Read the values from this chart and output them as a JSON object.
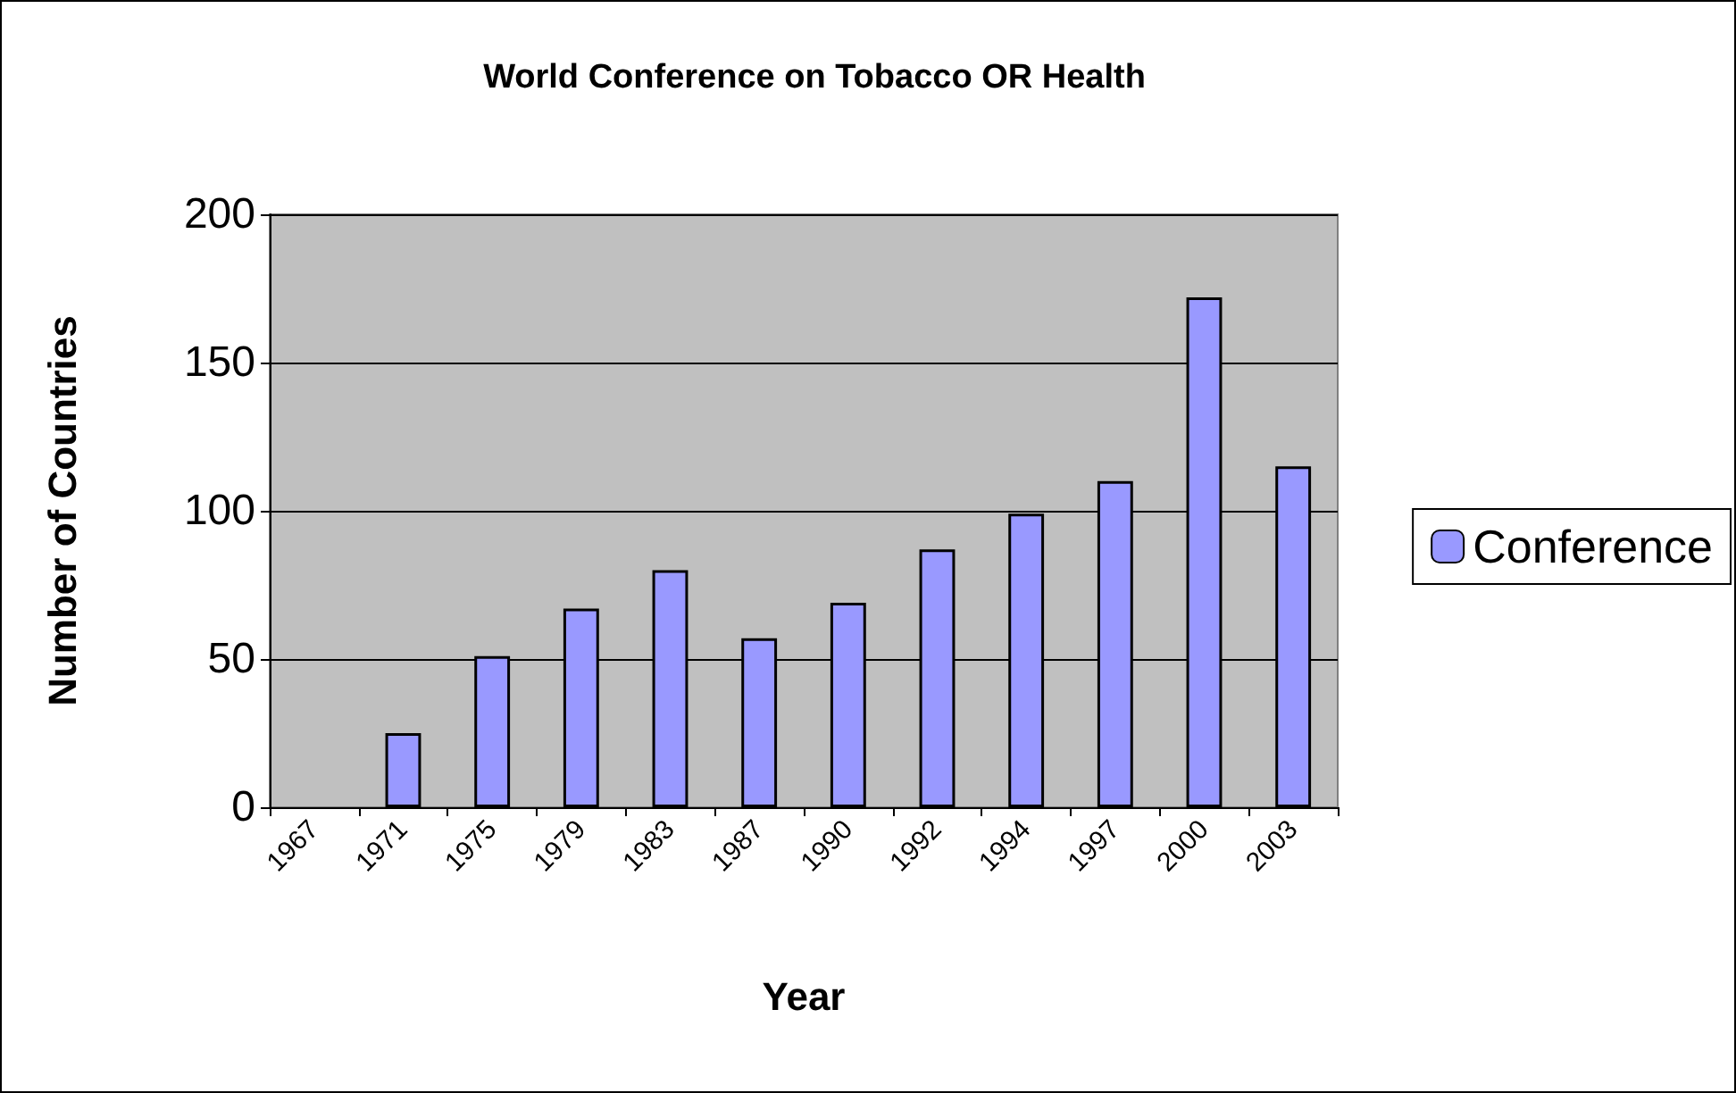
{
  "chart_data": {
    "type": "bar",
    "title": "World Conference on Tobacco OR Health",
    "xlabel": "Year",
    "ylabel": "Number of Countries",
    "categories": [
      "1967",
      "1971",
      "1975",
      "1979",
      "1983",
      "1987",
      "1990",
      "1992",
      "1994",
      "1997",
      "2000",
      "2003"
    ],
    "series": [
      {
        "name": "Conference",
        "color": "#9999ff",
        "values": [
          null,
          25,
          51,
          67,
          80,
          57,
          69,
          87,
          99,
          110,
          172,
          115
        ]
      }
    ],
    "ylim": [
      0,
      200
    ],
    "yticks": [
      0,
      50,
      100,
      150,
      200
    ],
    "grid": "y",
    "legend": "right"
  }
}
